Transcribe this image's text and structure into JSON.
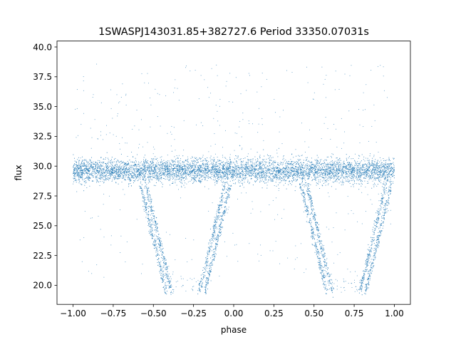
{
  "chart_data": {
    "type": "scatter",
    "title": "1SWASPJ143031.85+382727.6 Period 33350.07031s",
    "xlabel": "phase",
    "ylabel": "flux",
    "xlim": [
      -1.1,
      1.1
    ],
    "ylim": [
      18.4,
      40.5
    ],
    "x_ticks": [
      -1.0,
      -0.75,
      -0.5,
      -0.25,
      0.0,
      0.25,
      0.5,
      0.75,
      1.0
    ],
    "x_tick_labels": [
      "−1.00",
      "−0.75",
      "−0.50",
      "−0.25",
      "0.00",
      "0.25",
      "0.50",
      "0.75",
      "1.00"
    ],
    "y_ticks": [
      20.0,
      22.5,
      25.0,
      27.5,
      30.0,
      32.5,
      35.0,
      37.5,
      40.0
    ],
    "y_tick_labels": [
      "20.0",
      "22.5",
      "25.0",
      "27.5",
      "30.0",
      "32.5",
      "35.0",
      "37.5",
      "40.0"
    ],
    "grid": false,
    "point_color": "#1f77b4",
    "baseline_flux": 29.6,
    "baseline_scatter": 0.5,
    "eclipse_min_flux": 19.4,
    "eclipse_ingress_phases": [
      -0.58,
      0.42
    ],
    "eclipse_egress_phases": [
      -0.02,
      0.98
    ],
    "eclipse_bottom_phases": [
      [
        -0.4,
        -0.2
      ],
      [
        0.6,
        0.8
      ]
    ],
    "phase_range": [
      -1.0,
      1.0
    ]
  }
}
